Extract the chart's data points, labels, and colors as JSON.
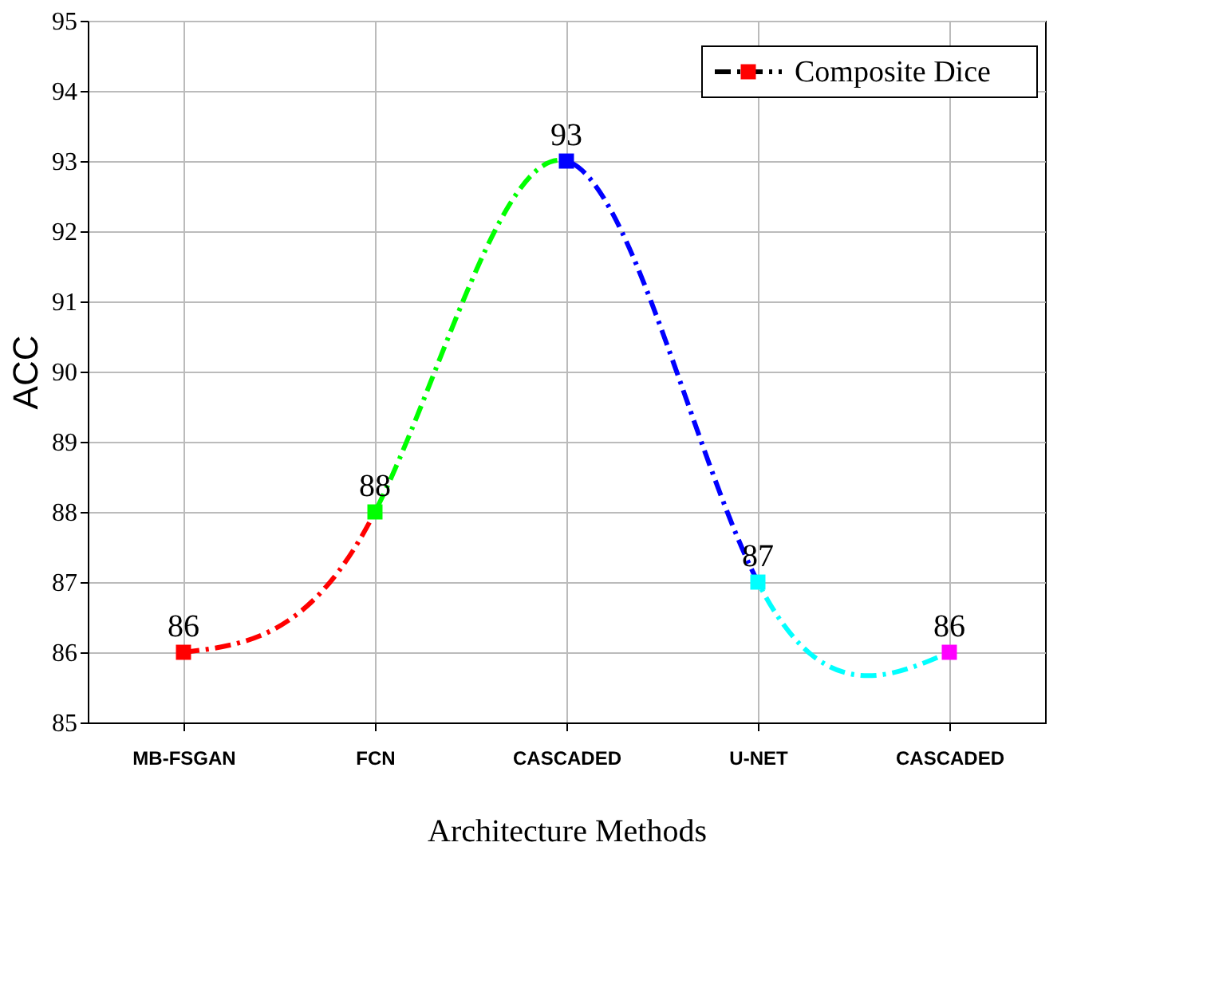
{
  "chart_data": {
    "type": "line",
    "xlabel": "Architecture Methods",
    "ylabel": "ACC",
    "categories": [
      "MB-FSGAN",
      "FCN",
      "CASCADED",
      "U-NET",
      "CASCADED"
    ],
    "series": [
      {
        "name": "Composite Dice",
        "color": "#ff0000",
        "colors": [
          "#ff0000",
          "#00ff00",
          "#0000ff",
          "#00ffff",
          "#ff00ff"
        ],
        "values": [
          86,
          88,
          93,
          87,
          86
        ]
      }
    ],
    "ylim": [
      85,
      95
    ],
    "yticks": [
      85,
      86,
      87,
      88,
      89,
      90,
      91,
      92,
      93,
      94,
      95
    ],
    "grid": true,
    "legend": "top right",
    "marker": "square",
    "line_style": "dashed",
    "data_labels": true
  }
}
